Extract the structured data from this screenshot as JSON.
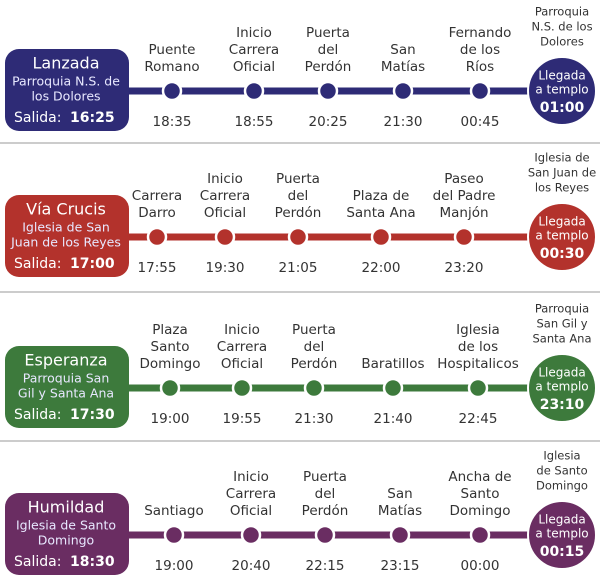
{
  "rows": [
    {
      "name": "Lanzada",
      "origin": [
        "Parroquia N.S. de",
        "los Dolores"
      ],
      "departure_label": "Salida:",
      "departure_time": "16:25",
      "color": "#2e2b76",
      "stops": [
        {
          "name": [
            "Puente",
            "Romano"
          ],
          "time": "18:35"
        },
        {
          "name": [
            "Inicio",
            "Carrera",
            "Oficial"
          ],
          "time": "18:55"
        },
        {
          "name": [
            "Puerta",
            "del",
            "Perdón"
          ],
          "time": "20:25"
        },
        {
          "name": [
            "San",
            "Matías"
          ],
          "time": "21:30"
        },
        {
          "name": [
            "Fernando",
            "de los",
            "Ríos"
          ],
          "time": "00:45"
        }
      ],
      "destination": [
        "Parroquia",
        "N.S. de los",
        "Dolores"
      ],
      "arrival_label": [
        "Llegada",
        "a templo"
      ],
      "arrival_time": "01:00"
    },
    {
      "name": "Vía Crucis",
      "origin": [
        "Iglesia de San",
        "Juan de los Reyes"
      ],
      "departure_label": "Salida:",
      "departure_time": "17:00",
      "color": "#b3322c",
      "stops": [
        {
          "name": [
            "Carrera",
            "Darro"
          ],
          "time": "17:55"
        },
        {
          "name": [
            "Inicio",
            "Carrera",
            "Oficial"
          ],
          "time": "19:30"
        },
        {
          "name": [
            "Puerta",
            "del",
            "Perdón"
          ],
          "time": "21:05"
        },
        {
          "name": [
            "Plaza de",
            "Santa Ana"
          ],
          "time": "22:00"
        },
        {
          "name": [
            "Paseo",
            "del Padre",
            "Manjón"
          ],
          "time": "23:20"
        }
      ],
      "destination": [
        "Iglesia de",
        "San Juan de",
        "los Reyes"
      ],
      "arrival_label": [
        "Llegada",
        "a templo"
      ],
      "arrival_time": "00:30"
    },
    {
      "name": "Esperanza",
      "origin": [
        "Parroquia San",
        "Gil y Santa Ana"
      ],
      "departure_label": "Salida:",
      "departure_time": "17:30",
      "color": "#3d7a3c",
      "stops": [
        {
          "name": [
            "Plaza",
            "Santo",
            "Domingo"
          ],
          "time": "19:00"
        },
        {
          "name": [
            "Inicio",
            "Carrera",
            "Oficial"
          ],
          "time": "19:55"
        },
        {
          "name": [
            "Puerta",
            "del",
            "Perdón"
          ],
          "time": "21:30"
        },
        {
          "name": [
            "Baratillos"
          ],
          "time": "21:40"
        },
        {
          "name": [
            "Iglesia",
            "de los",
            "Hospitalicos"
          ],
          "time": "22:45"
        }
      ],
      "destination": [
        "Parroquia",
        "San Gil y",
        "Santa Ana"
      ],
      "arrival_label": [
        "Llegada",
        "a templo"
      ],
      "arrival_time": "23:10"
    },
    {
      "name": "Humildad",
      "origin": [
        "Iglesia de Santo",
        "Domingo"
      ],
      "departure_label": "Salida:",
      "departure_time": "18:30",
      "color": "#6a2d62",
      "stops": [
        {
          "name": [
            "Santiago"
          ],
          "time": "19:00"
        },
        {
          "name": [
            "Inicio",
            "Carrera",
            "Oficial"
          ],
          "time": "20:40"
        },
        {
          "name": [
            "Puerta",
            "del",
            "Perdón"
          ],
          "time": "22:15"
        },
        {
          "name": [
            "San",
            "Matías"
          ],
          "time": "23:15"
        },
        {
          "name": [
            "Ancha de",
            "Santo",
            "Domingo"
          ],
          "time": "00:00"
        }
      ],
      "destination": [
        "Iglesia",
        "de Santo",
        "Domingo"
      ],
      "arrival_label": [
        "Llegada",
        "a templo"
      ],
      "arrival_time": "00:15"
    }
  ]
}
